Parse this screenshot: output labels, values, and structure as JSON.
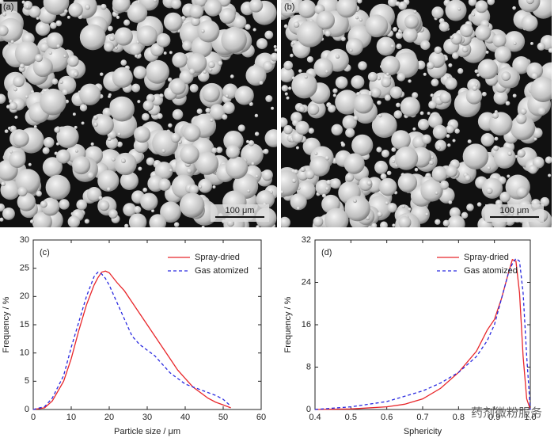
{
  "images": [
    {
      "label": "(a)",
      "scale": "100 μm"
    },
    {
      "label": "(b)",
      "scale": "100 μm"
    }
  ],
  "watermark": "药剂微粉服务",
  "chart_data": [
    {
      "type": "line",
      "label": "(c)",
      "x_label": "Particle size / μm",
      "y_label": "Frequency / %",
      "xlim": [
        0,
        60
      ],
      "xticks": [
        0,
        10,
        20,
        30,
        40,
        50,
        60
      ],
      "ylim": [
        0,
        30
      ],
      "yticks": [
        0,
        5,
        10,
        15,
        20,
        25,
        30
      ],
      "x": [
        0,
        3,
        5,
        8,
        10,
        12,
        14,
        16,
        17,
        18,
        19,
        20,
        22,
        24,
        26,
        28,
        30,
        32,
        34,
        36,
        38,
        40,
        42,
        44,
        46,
        48,
        50,
        52
      ],
      "series": [
        {
          "name": "Spray-dried",
          "color": "#e8262a",
          "dash": "solid",
          "values": [
            0,
            0.3,
            1.5,
            5,
            9,
            14,
            18.5,
            22,
            23.3,
            24.3,
            24.5,
            24.2,
            22.5,
            21,
            19,
            17,
            15,
            13,
            11,
            9,
            7,
            5.5,
            4,
            3,
            2,
            1.3,
            0.8,
            0.3
          ]
        },
        {
          "name": "Gas atomized",
          "color": "#2a2ae0",
          "dash": "dashed",
          "values": [
            0,
            0.5,
            2,
            6,
            11,
            15.5,
            20,
            23.5,
            24.3,
            24,
            23.2,
            22,
            19,
            16,
            13,
            11.5,
            10.5,
            9.5,
            8,
            6.5,
            5.5,
            4.5,
            4,
            3.5,
            3,
            2.5,
            1.8,
            0.6
          ]
        }
      ]
    },
    {
      "type": "line",
      "label": "(d)",
      "x_label": "Sphericity",
      "y_label": "Frequency / %",
      "xlim": [
        0.4,
        1.0
      ],
      "xticks": [
        0.4,
        0.5,
        0.6,
        0.7,
        0.8,
        0.9,
        {
          "value": 1,
          "label": "1.0"
        }
      ],
      "ylim": [
        0,
        32
      ],
      "yticks": [
        0,
        8,
        16,
        24,
        32
      ],
      "x": [
        0.4,
        0.5,
        0.6,
        0.65,
        0.7,
        0.75,
        0.8,
        0.85,
        0.88,
        0.9,
        0.92,
        0.94,
        0.95,
        0.96,
        0.97,
        0.98,
        0.99,
        1.0
      ],
      "series": [
        {
          "name": "Spray-dried",
          "color": "#e8262a",
          "dash": "solid",
          "values": [
            0,
            0.1,
            0.5,
            1,
            2,
            4,
            7,
            11,
            15,
            17,
            21,
            26,
            28.3,
            28,
            22,
            10,
            2,
            0
          ]
        },
        {
          "name": "Gas atomized",
          "color": "#2a2ae0",
          "dash": "dashed",
          "values": [
            0,
            0.5,
            1.5,
            2.5,
            3.5,
            5,
            7,
            10,
            13,
            16,
            21,
            26,
            27.5,
            28.5,
            28,
            22,
            10,
            0
          ]
        }
      ]
    }
  ]
}
